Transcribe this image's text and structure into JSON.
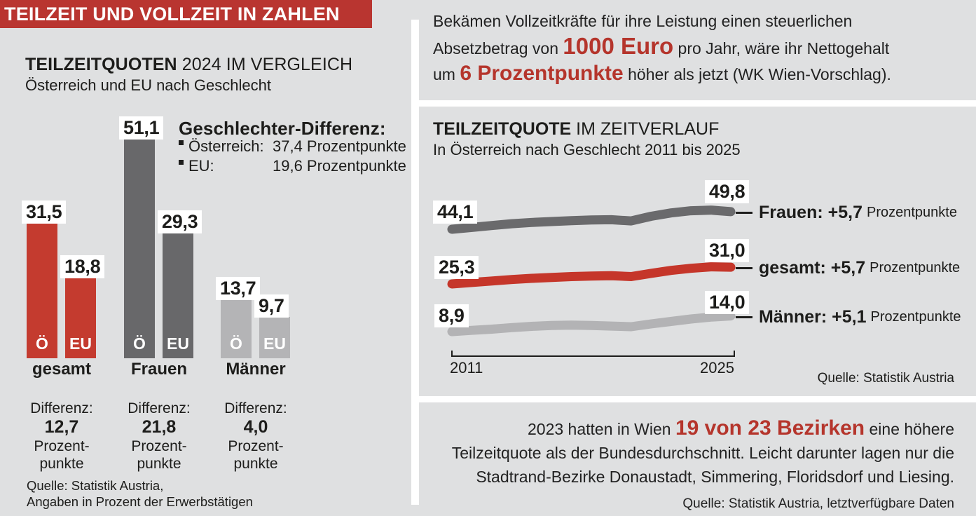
{
  "colors": {
    "background": "#dfe0e1",
    "banner_red": "#b93530",
    "accent_red": "#b5352c",
    "bar_red": "#c43b2f",
    "dark_gray": "#68686a",
    "light_gray": "#b4b4b6",
    "text": "#1d1d1b",
    "chip_bg": "#ffffff",
    "group_colors": [
      "#c43b2f",
      "#68686a",
      "#b4b4b6"
    ]
  },
  "banner": {
    "title": "TEILZEIT UND VOLLZEIT IN ZAHLEN"
  },
  "bar_section": {
    "title_bold": "TEILZEITQUOTEN",
    "title_rest": " 2024 IM VERGLEICH",
    "subtitle": "Österreich und EU nach Geschlecht",
    "legend": {
      "title": "Geschlechter-Differenz:",
      "rows": [
        {
          "label": "Österreich:",
          "value": "37,4 Prozentpunkte"
        },
        {
          "label": "EU:",
          "value": "19,6 Prozentpunkte"
        }
      ]
    },
    "difference_label": "Differenz:",
    "unit_line1": "Prozent-",
    "unit_line2": "punkte",
    "source_line1": "Quelle: Statistik Austria,",
    "source_line2": "Angaben in Prozent der Erwerbstätigen"
  },
  "fact_top": {
    "seg1": "Bekämen Vollzeitkräfte für ihre Leistung einen steuerlichen",
    "seg2": "Absetzbetrag von ",
    "highlight1": "1000 Euro",
    "seg3": " pro Jahr, wäre ihr Nettogehalt",
    "seg4": "um ",
    "highlight2": "6 Prozentpunkte",
    "seg5": " höher als jetzt (WK Wien-Vorschlag)."
  },
  "line_section": {
    "title_bold": "TEILZEITQUOTE",
    "title_rest": " IM ZEITVERLAUF",
    "subtitle": "In Österreich nach Geschlecht 2011 bis 2025",
    "unit_label": "Prozentpunkte",
    "axis": {
      "start": "2011",
      "end": "2025"
    },
    "source": "Quelle: Statistik Austria"
  },
  "fact_bottom": {
    "seg1": "2023 hatten in Wien ",
    "highlight": "19 von 23 Bezirken",
    "seg2": " eine höhere",
    "line2": "Teilzeitquote als der Bundesdurchschnitt. Leicht darunter lagen nur die",
    "line3": "Stadtrand-Bezirke Donaustadt, Simmering, Floridsdorf und Liesing.",
    "source": "Quelle: Statistik Austria, letztverfügbare Daten"
  },
  "chart_data": [
    {
      "type": "bar",
      "title": "TEILZEITQUOTEN 2024 IM VERGLEICH",
      "subtitle": "Österreich und EU nach Geschlecht",
      "categories": [
        "gesamt",
        "Frauen",
        "Männer"
      ],
      "series": [
        {
          "name": "Ö",
          "values": [
            31.5,
            51.1,
            13.7
          ]
        },
        {
          "name": "EU",
          "values": [
            18.8,
            29.3,
            9.7
          ]
        }
      ],
      "differences": [
        12.7,
        21.8,
        4.0
      ],
      "gender_difference": {
        "Österreich": 37.4,
        "EU": 19.6
      },
      "ylabel": "Prozent der Erwerbstätigen",
      "ylim": [
        0,
        55
      ],
      "grid": false,
      "source": "Quelle: Statistik Austria, Angaben in Prozent der Erwerbstätigen"
    },
    {
      "type": "line",
      "title": "TEILZEITQUOTE IM ZEITVERLAUF",
      "subtitle": "In Österreich nach Geschlecht 2011 bis 2025",
      "x": [
        2011,
        2012,
        2013,
        2014,
        2015,
        2016,
        2017,
        2018,
        2019,
        2020,
        2021,
        2022,
        2023,
        2024,
        2025
      ],
      "series": [
        {
          "name": "Frauen",
          "color": "#6a6a6c",
          "start": 44.1,
          "end": 49.8,
          "change": 5.7,
          "values": [
            44.1,
            44.7,
            45.3,
            45.9,
            46.3,
            46.6,
            46.9,
            47.1,
            47.2,
            46.8,
            48.3,
            49.4,
            50.1,
            50.3,
            49.8
          ]
        },
        {
          "name": "gesamt",
          "color": "#c5362a",
          "start": 25.3,
          "end": 31.0,
          "change": 5.7,
          "values": [
            25.3,
            25.8,
            26.3,
            26.8,
            27.2,
            27.5,
            27.8,
            28.0,
            28.1,
            27.8,
            28.9,
            29.9,
            30.6,
            31.1,
            31.0
          ]
        },
        {
          "name": "Männer",
          "color": "#b3b3b5",
          "start": 8.9,
          "end": 14.0,
          "change": 5.1,
          "values": [
            8.9,
            9.3,
            9.7,
            10.2,
            10.6,
            10.9,
            11.0,
            10.9,
            10.7,
            10.5,
            11.4,
            12.2,
            13.0,
            13.6,
            14.0
          ]
        }
      ],
      "xlabels": [
        "2011",
        "2025"
      ],
      "legend_position": "right-of-line-end",
      "grid": false,
      "source": "Quelle: Statistik Austria"
    }
  ]
}
